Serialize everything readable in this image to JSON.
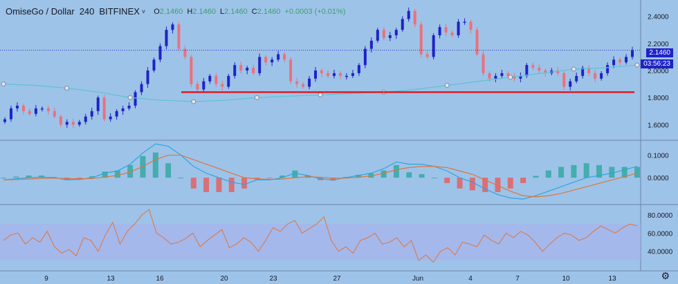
{
  "header": {
    "symbol": "OmiseGo / Dollar",
    "interval": "240",
    "exchange": "BITFINEX",
    "o_label": "O",
    "o_value": "2.1460",
    "h_label": "H",
    "h_value": "2.1460",
    "l_label": "L",
    "l_value": "2.1460",
    "c_label": "C",
    "c_value": "2.1460",
    "change": "+0.0003 (+0.01%)"
  },
  "price_badges": {
    "last": "2.1460",
    "countdown": "03:56:23"
  },
  "colors": {
    "up": "#1e22c8",
    "down": "#ee6f7d",
    "ma": "#5fc3d6",
    "support": "#e0191e",
    "macd": "#2aa6e0",
    "signal": "#e0743a",
    "hist_up": "#26a69a",
    "hist_down": "#ef5350",
    "rsi": "#e0743a",
    "rsi_band": "#a9b0ee",
    "bg": "#9ec3e8"
  },
  "chart_data": [
    {
      "type": "candlestick",
      "title": "",
      "ylim": [
        1.5,
        2.5
      ],
      "y_ticks": [
        "2.4000",
        "2.2000",
        "2.0000",
        "1.8000",
        "1.6000"
      ],
      "x_ticks": [
        "9",
        "13",
        "16",
        "20",
        "23",
        "27",
        "Jun",
        "4",
        "7",
        "10",
        "13"
      ],
      "support_level": 1.84,
      "close": [
        1.64,
        1.72,
        1.74,
        1.7,
        1.68,
        1.72,
        1.72,
        1.7,
        1.66,
        1.6,
        1.62,
        1.6,
        1.62,
        1.66,
        1.7,
        1.8,
        1.64,
        1.66,
        1.7,
        1.72,
        1.74,
        1.84,
        1.9,
        2.0,
        2.08,
        2.18,
        2.3,
        2.34,
        2.16,
        2.1,
        1.9,
        1.86,
        1.92,
        1.96,
        1.9,
        1.88,
        1.96,
        2.04,
        2.0,
        2.02,
        1.98,
        2.1,
        2.06,
        2.08,
        2.12,
        2.08,
        1.92,
        1.9,
        1.88,
        1.94,
        2.0,
        1.98,
        1.96,
        1.98,
        1.96,
        1.96,
        1.98,
        2.04,
        2.16,
        2.22,
        2.3,
        2.24,
        2.26,
        2.3,
        2.38,
        2.44,
        2.34,
        2.12,
        2.1,
        2.26,
        2.32,
        2.28,
        2.26,
        2.36,
        2.36,
        2.3,
        2.12,
        1.98,
        1.94,
        1.96,
        1.98,
        1.96,
        1.94,
        1.96,
        2.04,
        2.02,
        2.0,
        1.98,
        2.0,
        1.98,
        1.88,
        1.92,
        1.96,
        2.02,
        1.98,
        1.94,
        1.98,
        2.04,
        2.08,
        2.06,
        2.1,
        2.15
      ],
      "ma_values": [
        1.9,
        1.89,
        1.87,
        1.84,
        1.8,
        1.78,
        1.77,
        1.78,
        1.8,
        1.81,
        1.82,
        1.83,
        1.84,
        1.86,
        1.89,
        1.92,
        1.95,
        1.98,
        2.01,
        2.02,
        2.04
      ],
      "ma_marker_positions": [
        0,
        2,
        4,
        6,
        8,
        10,
        12,
        14,
        16,
        18,
        20
      ]
    },
    {
      "type": "macd",
      "y_ticks": [
        "0.1000",
        "0.0000"
      ],
      "macd": [
        -0.01,
        -0.005,
        0.0,
        0.003,
        0.0,
        -0.01,
        -0.008,
        0.0,
        0.02,
        0.03,
        0.06,
        0.11,
        0.15,
        0.14,
        0.1,
        0.05,
        0.02,
        0.0,
        -0.02,
        -0.03,
        -0.01,
        -0.01,
        0.0,
        0.02,
        0.01,
        -0.005,
        -0.01,
        0.0,
        0.01,
        0.02,
        0.04,
        0.07,
        0.06,
        0.06,
        0.05,
        0.03,
        0.0,
        -0.02,
        -0.05,
        -0.075,
        -0.09,
        -0.095,
        -0.08,
        -0.06,
        -0.04,
        -0.02,
        0.0,
        0.01,
        0.02,
        0.035,
        0.05
      ],
      "signal": [
        -0.01,
        -0.008,
        -0.006,
        -0.003,
        -0.002,
        -0.004,
        -0.005,
        -0.004,
        0.003,
        0.01,
        0.025,
        0.05,
        0.08,
        0.1,
        0.1,
        0.08,
        0.06,
        0.04,
        0.02,
        0.0,
        -0.005,
        -0.008,
        -0.006,
        0.0,
        0.004,
        0.002,
        -0.002,
        -0.002,
        0.002,
        0.008,
        0.02,
        0.035,
        0.045,
        0.05,
        0.05,
        0.045,
        0.03,
        0.015,
        -0.01,
        -0.035,
        -0.06,
        -0.08,
        -0.085,
        -0.08,
        -0.07,
        -0.055,
        -0.04,
        -0.025,
        -0.01,
        0.005,
        0.02
      ]
    },
    {
      "type": "rsi",
      "y_ticks": [
        "80.0000",
        "60.0000",
        "40.0000"
      ],
      "upper": 70,
      "lower": 30,
      "values": [
        52,
        58,
        60,
        48,
        55,
        50,
        62,
        45,
        38,
        42,
        35,
        55,
        52,
        40,
        58,
        72,
        48,
        62,
        70,
        80,
        86,
        60,
        55,
        48,
        50,
        54,
        60,
        45,
        52,
        58,
        64,
        44,
        48,
        55,
        50,
        40,
        52,
        66,
        62,
        70,
        74,
        60,
        65,
        70,
        78,
        52,
        40,
        45,
        38,
        52,
        55,
        60,
        48,
        50,
        55,
        45,
        52,
        30,
        36,
        28,
        40,
        44,
        36,
        50,
        48,
        45,
        58,
        52,
        48,
        60,
        55,
        62,
        58,
        50,
        40,
        48,
        55,
        60,
        58,
        52,
        55,
        62,
        68,
        64,
        60,
        66,
        70,
        68
      ]
    }
  ]
}
